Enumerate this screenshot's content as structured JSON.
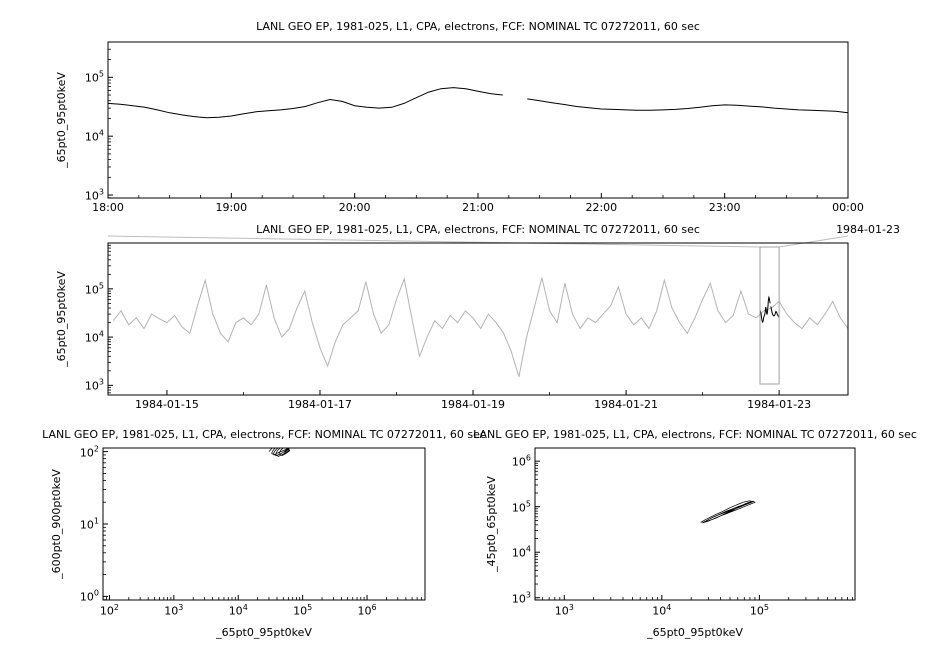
{
  "colors": {
    "trace": "#000000",
    "context_trace": "#b4b4b4",
    "frame": "#000000",
    "connector": "#bdbdbd",
    "selection": "#a0a0a0",
    "background": "#ffffff"
  },
  "chart_data": [
    {
      "id": "ts-detail",
      "type": "line",
      "title": "LANL GEO EP, 1981-025, L1, CPA, electrons, FCF: NOMINAL TC 07272011, 60 sec",
      "ylabel": "_65pt0_95pt0keV",
      "x_date_label": "1984-01-23",
      "xaxis": {
        "kind": "time",
        "min": 18,
        "max": 24,
        "minor_step": 0.25,
        "major_ticks": [
          {
            "v": 18,
            "label": "18:00"
          },
          {
            "v": 19,
            "label": "19:00"
          },
          {
            "v": 20,
            "label": "20:00"
          },
          {
            "v": 21,
            "label": "21:00"
          },
          {
            "v": 22,
            "label": "22:00"
          },
          {
            "v": 23,
            "label": "23:00"
          },
          {
            "v": 24,
            "label": "00:00"
          }
        ]
      },
      "yaxis": {
        "kind": "log",
        "min_exp": 2.95,
        "max_exp": 5.6,
        "major_ticks": [
          3,
          4,
          5
        ]
      },
      "series": {
        "name": "_65pt0_95pt0keV",
        "t0": 18,
        "dt": 0.1,
        "scale": 1000,
        "values": [
          36,
          35,
          33,
          31,
          28,
          25,
          23,
          21.5,
          20.5,
          21,
          22,
          24,
          26,
          27,
          28,
          29.5,
          32,
          37,
          42,
          39,
          33,
          31,
          30,
          31,
          36,
          45,
          56,
          64,
          67,
          64,
          58,
          53,
          50,
          null,
          43,
          40,
          37,
          34.5,
          32,
          30.5,
          29,
          28.5,
          28,
          27.5,
          27.5,
          28,
          28.5,
          29.5,
          31,
          33,
          34,
          33.5,
          32.5,
          31.5,
          30,
          29,
          28,
          27.5,
          27,
          26.5,
          25
        ]
      }
    },
    {
      "id": "ts-context",
      "type": "line",
      "title": "LANL GEO EP, 1981-025, L1, CPA, electrons, FCF: NOMINAL TC 07272011, 60 sec",
      "ylabel": "_65pt0_95pt0keV",
      "xaxis": {
        "kind": "time-days",
        "min": -0.77,
        "max": 8.9,
        "minor_step": 1,
        "major_ticks": [
          {
            "v": 0,
            "label": "1984-01-15"
          },
          {
            "v": 2,
            "label": "1984-01-17"
          },
          {
            "v": 4,
            "label": "1984-01-19"
          },
          {
            "v": 6,
            "label": "1984-01-21"
          },
          {
            "v": 8,
            "label": "1984-01-23"
          }
        ]
      },
      "yaxis": {
        "kind": "log",
        "min_exp": 2.8,
        "max_exp": 5.95,
        "major_ticks": [
          3,
          4,
          5
        ]
      },
      "series": {
        "name": "_65pt0_95pt0keV",
        "t0": -0.7,
        "dt": 0.1,
        "scale": 1000,
        "values": [
          22,
          35,
          18,
          25,
          15,
          30,
          24,
          20,
          28,
          16,
          12,
          45,
          150,
          30,
          12,
          8,
          20,
          25,
          18,
          30,
          120,
          25,
          10,
          15,
          40,
          90,
          20,
          6,
          2.5,
          8,
          18,
          25,
          35,
          140,
          30,
          12,
          18,
          60,
          160,
          25,
          4,
          10,
          22,
          15,
          28,
          20,
          35,
          25,
          15,
          30,
          20,
          12,
          5,
          1.5,
          10,
          40,
          170,
          35,
          20,
          130,
          30,
          15,
          25,
          20,
          30,
          45,
          110,
          30,
          18,
          25,
          15,
          35,
          150,
          40,
          20,
          12,
          25,
          60,
          130,
          35,
          20,
          28,
          90,
          30,
          25,
          35,
          40,
          55,
          30,
          20,
          15,
          25,
          18,
          30,
          55,
          25,
          15
        ]
      },
      "highlight": {
        "from_day": 7.75,
        "to_day": 8.0,
        "source_chart": "ts-detail"
      },
      "selection_box": {
        "from_day": 7.75,
        "to_day": 8.0
      }
    },
    {
      "id": "scatter-left",
      "type": "scatter",
      "title": "LANL GEO EP, 1981-025, L1, CPA, electrons, FCF: NOMINAL TC 07272011, 60 sec",
      "xlabel": "_65pt0_95pt0keV",
      "ylabel": "_600pt0_900pt0keV",
      "xaxis": {
        "kind": "log",
        "min_exp": 1.9,
        "max_exp": 6.9,
        "major_ticks": [
          2,
          3,
          4,
          5,
          6
        ]
      },
      "yaxis": {
        "kind": "log",
        "min_exp": -0.05,
        "max_exp": 2.05,
        "major_ticks": [
          0,
          1,
          2
        ]
      },
      "points_scale": {
        "x": 1000,
        "y": 1
      },
      "points": [
        [
          30,
          100
        ],
        [
          33,
          110
        ],
        [
          36,
          118
        ],
        [
          40,
          125
        ],
        [
          45,
          130
        ],
        [
          50,
          128
        ],
        [
          55,
          120
        ],
        [
          60,
          112
        ],
        [
          52,
          105
        ],
        [
          46,
          100
        ],
        [
          40,
          95
        ],
        [
          36,
          90
        ],
        [
          33,
          95
        ],
        [
          35,
          105
        ],
        [
          38,
          115
        ],
        [
          43,
          122
        ],
        [
          48,
          126
        ],
        [
          54,
          118
        ],
        [
          58,
          108
        ],
        [
          50,
          98
        ],
        [
          44,
          92
        ],
        [
          39,
          88
        ],
        [
          35,
          92
        ],
        [
          37,
          102
        ],
        [
          41,
          112
        ],
        [
          46,
          120
        ],
        [
          52,
          124
        ],
        [
          57,
          114
        ],
        [
          61,
          104
        ],
        [
          54,
          96
        ],
        [
          47,
          90
        ],
        [
          42,
          86
        ],
        [
          38,
          91
        ],
        [
          40,
          101
        ],
        [
          44,
          111
        ],
        [
          49,
          119
        ],
        [
          55,
          123
        ],
        [
          60,
          113
        ],
        [
          63,
          103
        ],
        [
          56,
          95
        ],
        [
          48,
          88
        ],
        [
          43,
          93
        ],
        [
          45,
          103
        ],
        [
          50,
          113
        ],
        [
          56,
          121
        ],
        [
          62,
          115
        ],
        [
          58,
          105
        ],
        [
          52,
          97
        ]
      ]
    },
    {
      "id": "scatter-right",
      "type": "scatter",
      "title": "LANL GEO EP, 1981-025, L1, CPA, electrons, FCF: NOMINAL TC 07272011, 60 sec",
      "xlabel": "_65pt0_95pt0keV",
      "ylabel": "_45pt0_65pt0keV",
      "xaxis": {
        "kind": "log",
        "min_exp": 2.7,
        "max_exp": 5.98,
        "major_ticks": [
          3,
          4,
          5
        ]
      },
      "yaxis": {
        "kind": "log",
        "min_exp": 2.95,
        "max_exp": 6.29,
        "major_ticks": [
          3,
          4,
          5,
          6
        ]
      },
      "points_scale": {
        "x": 1000,
        "y": 1000
      },
      "points": [
        [
          25,
          45
        ],
        [
          28,
          52
        ],
        [
          32,
          60
        ],
        [
          36,
          68
        ],
        [
          40,
          75
        ],
        [
          45,
          85
        ],
        [
          50,
          95
        ],
        [
          56,
          105
        ],
        [
          62,
          115
        ],
        [
          68,
          125
        ],
        [
          74,
          130
        ],
        [
          80,
          135
        ],
        [
          85,
          128
        ],
        [
          78,
          118
        ],
        [
          70,
          108
        ],
        [
          63,
          98
        ],
        [
          56,
          90
        ],
        [
          50,
          82
        ],
        [
          44,
          74
        ],
        [
          38,
          66
        ],
        [
          33,
          58
        ],
        [
          29,
          50
        ],
        [
          26,
          44
        ],
        [
          30,
          48
        ],
        [
          35,
          56
        ],
        [
          41,
          64
        ],
        [
          47,
          73
        ],
        [
          53,
          83
        ],
        [
          59,
          93
        ],
        [
          66,
          103
        ],
        [
          72,
          113
        ],
        [
          79,
          122
        ],
        [
          84,
          130
        ],
        [
          76,
          120
        ],
        [
          68,
          110
        ],
        [
          60,
          100
        ],
        [
          53,
          90
        ],
        [
          46,
          80
        ],
        [
          40,
          70
        ],
        [
          34,
          60
        ],
        [
          30,
          52
        ],
        [
          27,
          46
        ],
        [
          31,
          50
        ],
        [
          37,
          58
        ],
        [
          43,
          68
        ],
        [
          49,
          78
        ],
        [
          55,
          88
        ],
        [
          61,
          98
        ],
        [
          67,
          108
        ],
        [
          73,
          118
        ],
        [
          80,
          126
        ],
        [
          86,
          132
        ],
        [
          90,
          125
        ],
        [
          82,
          115
        ],
        [
          74,
          105
        ],
        [
          66,
          95
        ],
        [
          58,
          85
        ],
        [
          51,
          77
        ],
        [
          45,
          69
        ],
        [
          39,
          62
        ]
      ]
    }
  ]
}
